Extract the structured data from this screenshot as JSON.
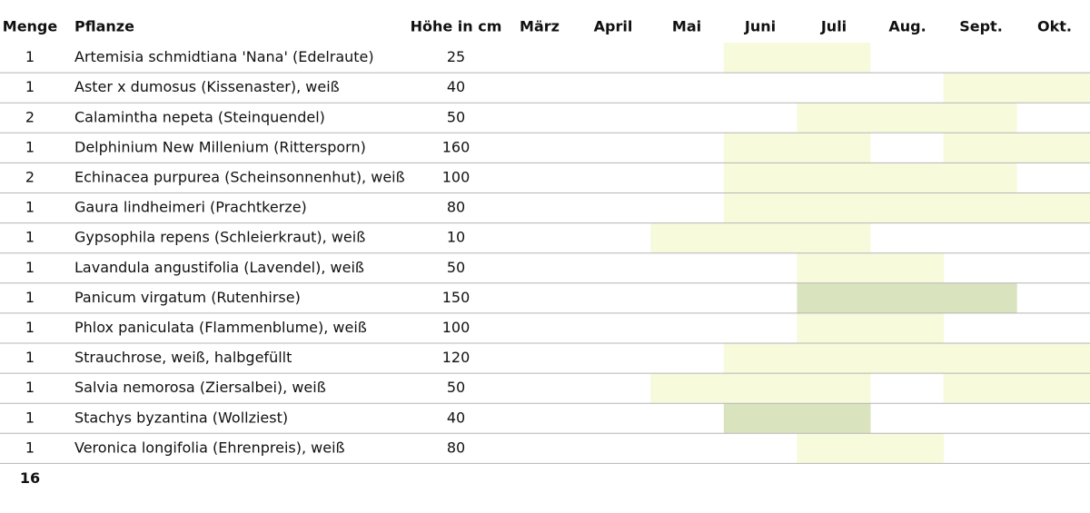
{
  "table": {
    "columns": [
      "Menge",
      "Pflanze",
      "Höhe in cm",
      "März",
      "April",
      "Mai",
      "Juni",
      "Juli",
      "Aug.",
      "Sept.",
      "Okt."
    ],
    "rows": [
      {
        "cells": [
          "1",
          "Artemisia schmidtiana  'Nana' (Edelraute)",
          "25"
        ],
        "shade": [
          null,
          null,
          null,
          "#f7fbdc",
          "#f7fbdc",
          null,
          null,
          null
        ]
      },
      {
        "cells": [
          "1",
          "Aster x dumosus (Kissenaster), weiß",
          "40"
        ],
        "shade": [
          null,
          null,
          null,
          null,
          null,
          null,
          "#f7fbdc",
          "#f7fbdc"
        ]
      },
      {
        "cells": [
          "2",
          "Calamintha nepeta  (Steinquendel)",
          "50"
        ],
        "shade": [
          null,
          null,
          null,
          null,
          "#f7fbdc",
          "#f7fbdc",
          "#f7fbdc",
          null
        ]
      },
      {
        "cells": [
          "1",
          "Delphinium New Millenium  (Rittersporn)",
          "160"
        ],
        "shade": [
          null,
          null,
          null,
          "#f7fbdc",
          "#f7fbdc",
          null,
          "#f7fbdc",
          "#f7fbdc"
        ]
      },
      {
        "cells": [
          "2",
          "Echinacea purpurea (Scheinsonnenhut), weiß",
          "100"
        ],
        "shade": [
          null,
          null,
          null,
          "#f7fbdc",
          "#f7fbdc",
          "#f7fbdc",
          "#f7fbdc",
          null
        ]
      },
      {
        "cells": [
          "1",
          "Gaura lindheimeri  (Prachtkerze)",
          "80"
        ],
        "shade": [
          null,
          null,
          null,
          "#f7fbdc",
          "#f7fbdc",
          "#f7fbdc",
          "#f7fbdc",
          "#f7fbdc"
        ]
      },
      {
        "cells": [
          "1",
          "Gypsophila repens (Schleierkraut), weiß",
          "10"
        ],
        "shade": [
          null,
          null,
          "#f7fbdc",
          "#f7fbdc",
          "#f7fbdc",
          null,
          null,
          null
        ]
      },
      {
        "cells": [
          "1",
          "Lavandula angustifolia (Lavendel), weiß",
          "50"
        ],
        "shade": [
          null,
          null,
          null,
          null,
          "#f7fbdc",
          "#f7fbdc",
          null,
          null
        ]
      },
      {
        "cells": [
          "1",
          "Panicum virgatum (Rutenhirse)",
          "150"
        ],
        "shade": [
          null,
          null,
          null,
          null,
          "#d9e4bf",
          "#d9e4bf",
          "#d9e4bf",
          null
        ]
      },
      {
        "cells": [
          "1",
          "Phlox paniculata (Flammenblume), weiß",
          "100"
        ],
        "shade": [
          null,
          null,
          null,
          null,
          "#f7fbdc",
          "#f7fbdc",
          null,
          null
        ]
      },
      {
        "cells": [
          "1",
          "Strauchrose, weiß, halbgefüllt",
          "120"
        ],
        "shade": [
          null,
          null,
          null,
          "#f7fbdc",
          "#f7fbdc",
          "#f7fbdc",
          "#f7fbdc",
          "#f7fbdc"
        ]
      },
      {
        "cells": [
          "1",
          "Salvia nemorosa (Ziersalbei), weiß",
          "50"
        ],
        "shade": [
          null,
          null,
          "#f7fbdc",
          "#f7fbdc",
          "#f7fbdc",
          null,
          "#f7fbdc",
          "#f7fbdc"
        ]
      },
      {
        "cells": [
          "1",
          "Stachys byzantina (Wollziest)",
          "40"
        ],
        "shade": [
          null,
          null,
          null,
          "#d9e4bf",
          "#d9e4bf",
          null,
          null,
          null
        ]
      },
      {
        "cells": [
          "1",
          "Veronica longifolia (Ehrenpreis), weiß",
          "80"
        ],
        "shade": [
          null,
          null,
          null,
          null,
          "#f7fbdc",
          "#f7fbdc",
          null,
          null
        ]
      }
    ],
    "total": "16"
  }
}
